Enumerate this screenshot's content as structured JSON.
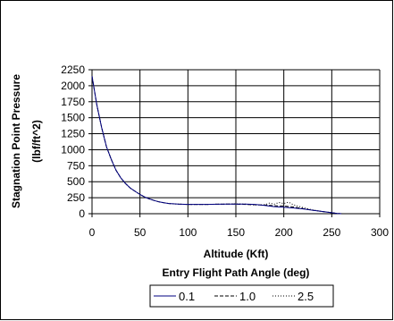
{
  "chart_data": {
    "type": "line",
    "title": "",
    "xlabel": "Altitude (Kft)",
    "xlabel_line2": "Entry Flight Path Angle (deg)",
    "ylabel": "Stagnation Point Pressure",
    "ylabel_line2": "(lbf/ft^2)",
    "xlim": [
      0,
      300
    ],
    "ylim": [
      0,
      2250
    ],
    "x_ticks": [
      "0",
      "50",
      "100",
      "150",
      "200",
      "250",
      "300"
    ],
    "y_ticks": [
      "0",
      "250",
      "500",
      "750",
      "1000",
      "1250",
      "1500",
      "1750",
      "2000",
      "2250"
    ],
    "grid": true,
    "legend_position": "bottom",
    "series": [
      {
        "name": "0.1",
        "color": "#000080",
        "dash": "solid",
        "points": [
          [
            0,
            2150
          ],
          [
            5,
            1700
          ],
          [
            10,
            1350
          ],
          [
            15,
            1050
          ],
          [
            20,
            850
          ],
          [
            25,
            680
          ],
          [
            30,
            560
          ],
          [
            35,
            470
          ],
          [
            40,
            400
          ],
          [
            45,
            350
          ],
          [
            50,
            300
          ],
          [
            55,
            260
          ],
          [
            60,
            230
          ],
          [
            65,
            205
          ],
          [
            70,
            185
          ],
          [
            75,
            170
          ],
          [
            80,
            160
          ],
          [
            90,
            150
          ],
          [
            100,
            145
          ],
          [
            110,
            145
          ],
          [
            120,
            145
          ],
          [
            130,
            148
          ],
          [
            140,
            150
          ],
          [
            150,
            150
          ],
          [
            160,
            150
          ],
          [
            170,
            145
          ],
          [
            180,
            130
          ],
          [
            190,
            110
          ],
          [
            200,
            100
          ],
          [
            210,
            90
          ],
          [
            220,
            75
          ],
          [
            230,
            55
          ],
          [
            240,
            35
          ],
          [
            250,
            15
          ],
          [
            255,
            5
          ],
          [
            260,
            0
          ]
        ]
      },
      {
        "name": "1.0",
        "color": "#000000",
        "dash": "dashed",
        "points": [
          [
            0,
            2150
          ],
          [
            5,
            1700
          ],
          [
            10,
            1350
          ],
          [
            15,
            1050
          ],
          [
            20,
            850
          ],
          [
            25,
            680
          ],
          [
            30,
            560
          ],
          [
            35,
            470
          ],
          [
            40,
            400
          ],
          [
            45,
            350
          ],
          [
            50,
            300
          ],
          [
            55,
            260
          ],
          [
            60,
            230
          ],
          [
            65,
            205
          ],
          [
            70,
            185
          ],
          [
            75,
            170
          ],
          [
            80,
            160
          ],
          [
            90,
            150
          ],
          [
            100,
            145
          ],
          [
            110,
            145
          ],
          [
            120,
            145
          ],
          [
            130,
            148
          ],
          [
            140,
            150
          ],
          [
            150,
            150
          ],
          [
            160,
            145
          ],
          [
            170,
            140
          ],
          [
            180,
            135
          ],
          [
            190,
            125
          ],
          [
            200,
            120
          ],
          [
            210,
            105
          ],
          [
            220,
            80
          ],
          [
            230,
            55
          ],
          [
            240,
            35
          ],
          [
            250,
            15
          ],
          [
            255,
            5
          ],
          [
            260,
            0
          ]
        ]
      },
      {
        "name": "2.5",
        "color": "#000000",
        "dash": "dotted",
        "points": [
          [
            0,
            2150
          ],
          [
            5,
            1700
          ],
          [
            10,
            1350
          ],
          [
            15,
            1050
          ],
          [
            20,
            850
          ],
          [
            25,
            680
          ],
          [
            30,
            560
          ],
          [
            35,
            470
          ],
          [
            40,
            400
          ],
          [
            45,
            350
          ],
          [
            50,
            300
          ],
          [
            55,
            260
          ],
          [
            60,
            230
          ],
          [
            65,
            205
          ],
          [
            70,
            185
          ],
          [
            75,
            170
          ],
          [
            80,
            160
          ],
          [
            90,
            150
          ],
          [
            100,
            145
          ],
          [
            110,
            145
          ],
          [
            120,
            145
          ],
          [
            130,
            148
          ],
          [
            140,
            150
          ],
          [
            150,
            155
          ],
          [
            160,
            150
          ],
          [
            170,
            135
          ],
          [
            180,
            140
          ],
          [
            185,
            165
          ],
          [
            190,
            150
          ],
          [
            195,
            175
          ],
          [
            200,
            160
          ],
          [
            205,
            180
          ],
          [
            210,
            140
          ],
          [
            220,
            95
          ],
          [
            230,
            60
          ],
          [
            240,
            35
          ],
          [
            250,
            15
          ],
          [
            255,
            5
          ],
          [
            262,
            0
          ]
        ]
      }
    ]
  }
}
